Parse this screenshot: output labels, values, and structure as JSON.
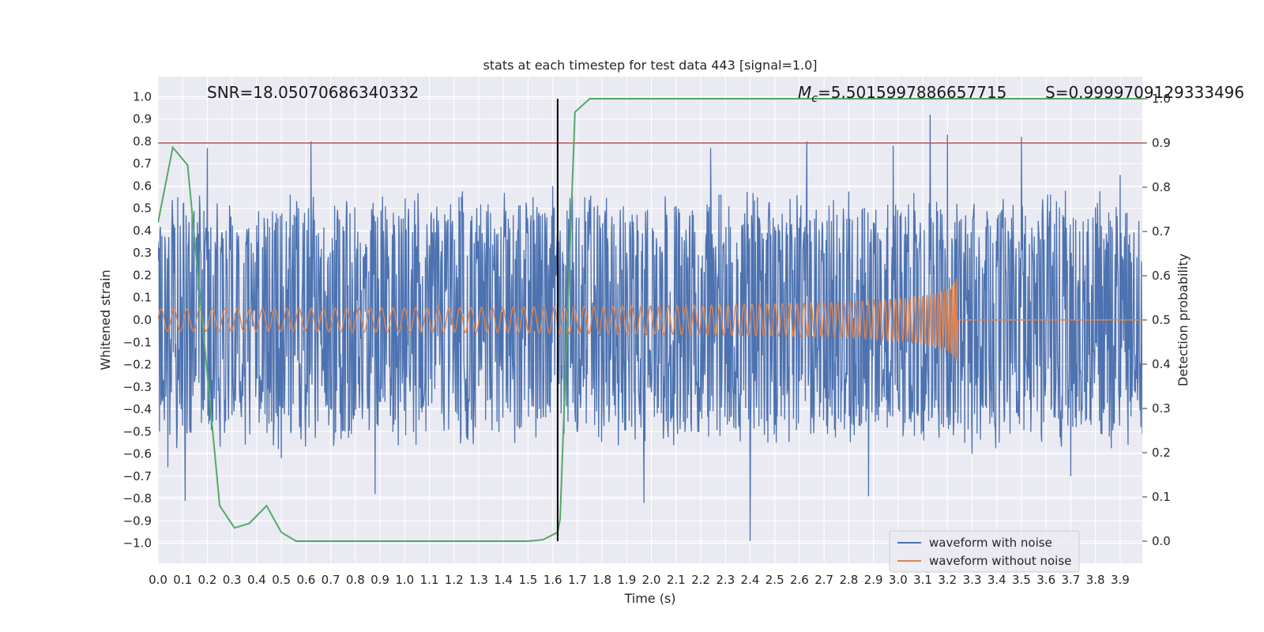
{
  "chart_data": {
    "type": "line",
    "title": "stats at each timestep for test data 443 [signal=1.0]",
    "xlabel": "Time (s)",
    "ylabel": "Whitened strain",
    "ylabel_right": "Detection probability",
    "xlim": [
      0.0,
      3.99
    ],
    "ylim": [
      -1.09,
      1.09
    ],
    "ylim_right": [
      -0.05,
      1.05
    ],
    "x_ticks": [
      "0.0",
      "0.1",
      "0.2",
      "0.3",
      "0.4",
      "0.5",
      "0.6",
      "0.7",
      "0.8",
      "0.9",
      "1.0",
      "1.1",
      "1.2",
      "1.3",
      "1.4",
      "1.5",
      "1.6",
      "1.7",
      "1.8",
      "1.9",
      "2.0",
      "2.1",
      "2.2",
      "2.3",
      "2.4",
      "2.5",
      "2.6",
      "2.7",
      "2.8",
      "2.9",
      "3.0",
      "3.1",
      "3.2",
      "3.3",
      "3.4",
      "3.5",
      "3.6",
      "3.7",
      "3.8",
      "3.9"
    ],
    "y_ticks": [
      "1.0",
      "0.9",
      "0.8",
      "0.7",
      "0.6",
      "0.5",
      "0.4",
      "0.3",
      "0.2",
      "0.1",
      "0.0",
      "−0.1",
      "−0.2",
      "−0.3",
      "−0.4",
      "−0.5",
      "−0.6",
      "−0.7",
      "−0.8",
      "−0.9",
      "−1.0"
    ],
    "y_right_ticks": [
      "1.0",
      "0.9",
      "0.8",
      "0.7",
      "0.6",
      "0.5",
      "0.4",
      "0.3",
      "0.2",
      "0.1",
      "0.0"
    ],
    "grid": true,
    "legend_position": "bottom-right",
    "annotations": {
      "snr": "SNR=18.05070686340332",
      "mc_symbol": "M",
      "mc_subscript": "c",
      "mc_value": "=5.5015997886657715",
      "s": "S=0.9999709129333496"
    },
    "series": [
      {
        "name": "waveform with noise",
        "color": "#4c72b0",
        "noise_envelope": [
          -0.45,
          0.45
        ],
        "x": [
          0.0,
          0.04,
          0.08,
          0.11,
          0.2,
          0.5,
          0.62,
          0.88,
          1.22,
          1.6,
          1.97,
          2.24,
          2.4,
          2.63,
          2.88,
          2.98,
          3.13,
          3.2,
          3.3,
          3.5,
          3.7,
          3.9
        ],
        "y": [
          0.35,
          -0.66,
          0.55,
          -0.81,
          0.77,
          -0.62,
          0.8,
          -0.78,
          0.55,
          0.6,
          -0.82,
          0.77,
          -0.99,
          0.8,
          -0.79,
          0.78,
          0.92,
          0.83,
          -0.6,
          0.82,
          -0.7,
          0.65
        ]
      },
      {
        "name": "waveform without noise",
        "color": "#dd8452",
        "chirp_start_amplitude": 0.05,
        "chirp_peak_amplitude": 0.45,
        "chirp_end_time": 3.24,
        "post_merger_value": 0.0
      },
      {
        "color": "#55a868",
        "axis": "right",
        "x": [
          0.0,
          0.06,
          0.12,
          0.25,
          0.31,
          0.37,
          0.44,
          0.5,
          0.56,
          1.0,
          1.5,
          1.56,
          1.62,
          1.63,
          1.69,
          1.75,
          2.0,
          3.0,
          3.99
        ],
        "y": [
          0.72,
          0.89,
          0.85,
          0.08,
          0.03,
          0.04,
          0.08,
          0.02,
          0.0,
          0.0,
          0.0,
          0.003,
          0.02,
          0.05,
          0.97,
          1.0,
          1.0,
          1.0,
          1.0
        ]
      }
    ],
    "threshold_line": {
      "y_right": 0.9,
      "color": "#c44e52"
    },
    "vertical_marker": {
      "x": 1.62,
      "color": "#000000"
    }
  },
  "colors": {
    "plot_background": "#eaeaf2",
    "grid": "#ffffff"
  }
}
